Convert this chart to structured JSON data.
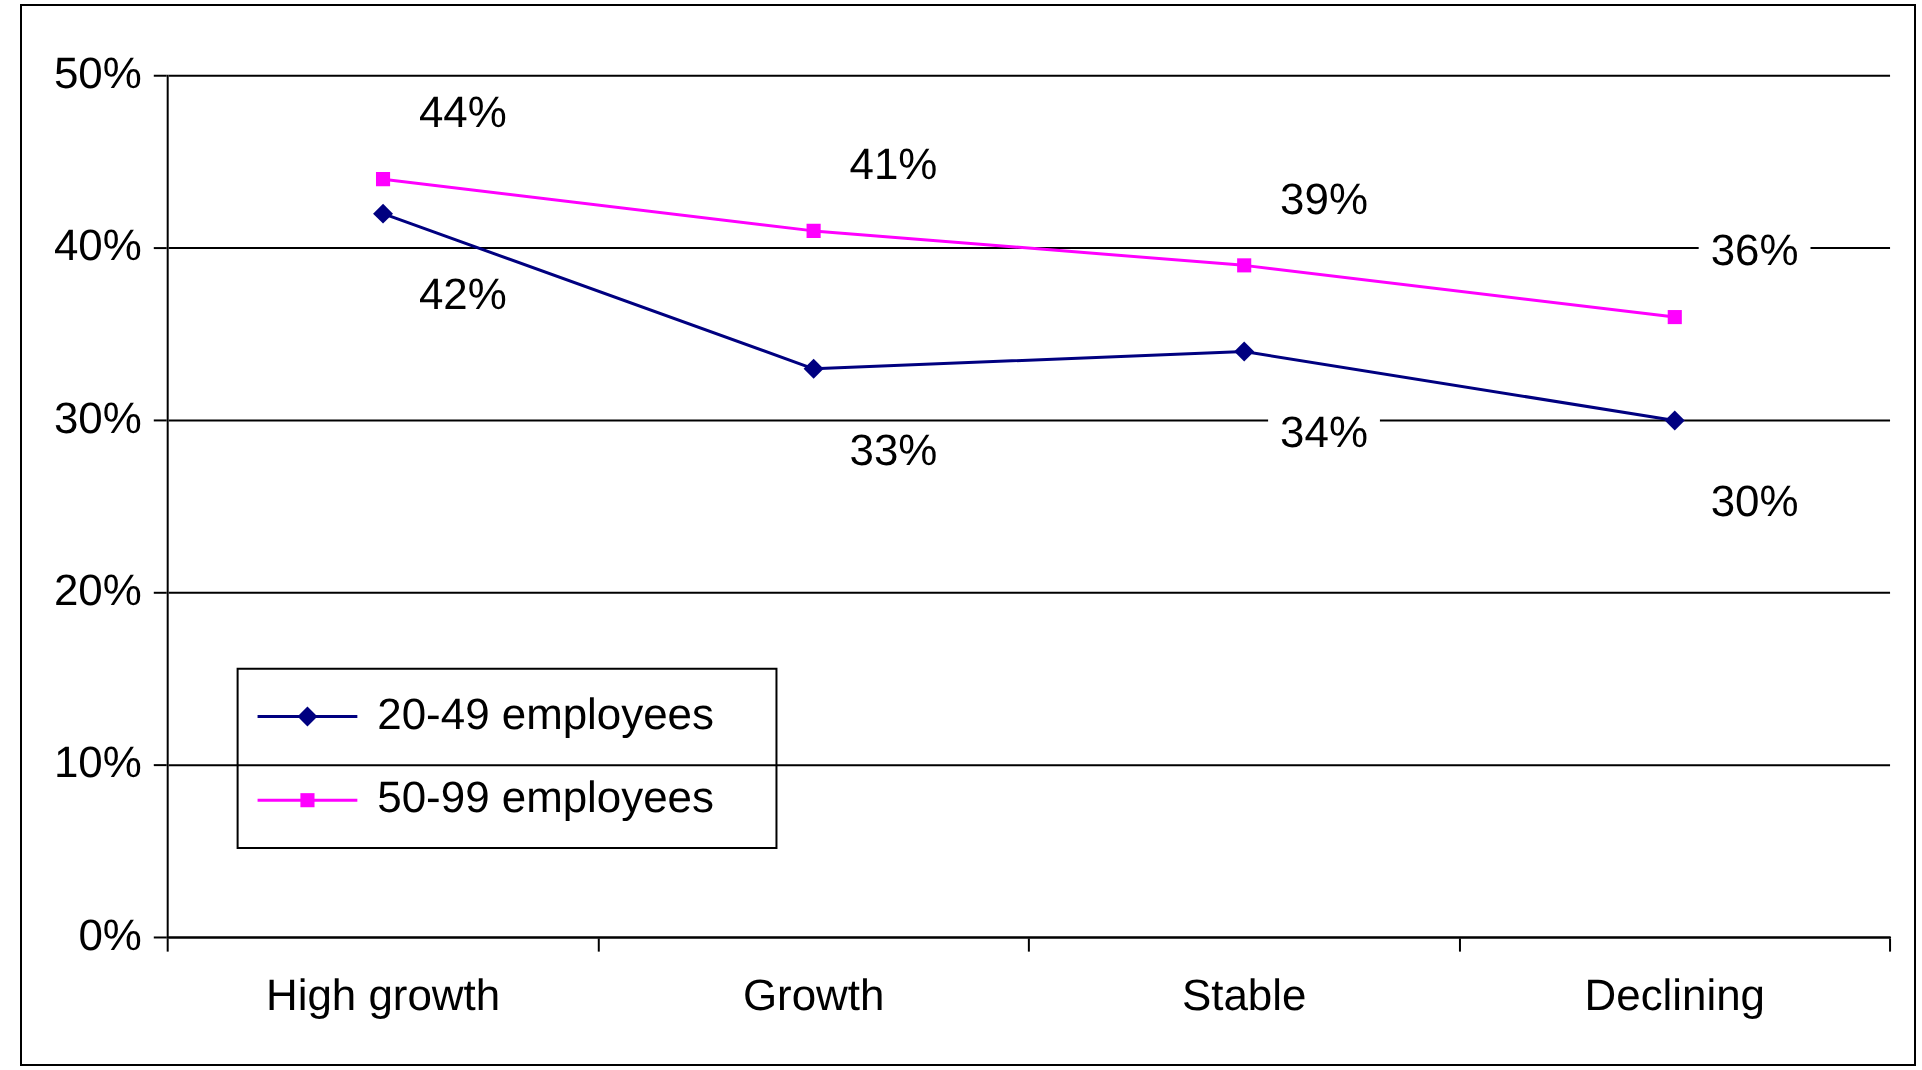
{
  "chart_data": {
    "type": "line",
    "categories": [
      "High growth",
      "Growth",
      "Stable",
      "Declining"
    ],
    "series": [
      {
        "name": "20-49 employees",
        "color": "#000080",
        "values": [
          42,
          33,
          34,
          30
        ],
        "value_labels": [
          "42%",
          "33%",
          "34%",
          "30%"
        ],
        "marker": "diamond"
      },
      {
        "name": "50-99 employees",
        "color": "#ff00ff",
        "values": [
          44,
          41,
          39,
          36
        ],
        "value_labels": [
          "44%",
          "41%",
          "39%",
          "36%"
        ],
        "marker": "square"
      }
    ],
    "ylim": [
      0,
      50
    ],
    "yticks": [
      {
        "value": 0,
        "label": "0%"
      },
      {
        "value": 10,
        "label": "10%"
      },
      {
        "value": 20,
        "label": "20%"
      },
      {
        "value": 30,
        "label": "30%"
      },
      {
        "value": 40,
        "label": "40%"
      },
      {
        "value": 50,
        "label": "50%"
      }
    ],
    "grid": "y",
    "legend": "bottom left",
    "line_style": "solid"
  }
}
